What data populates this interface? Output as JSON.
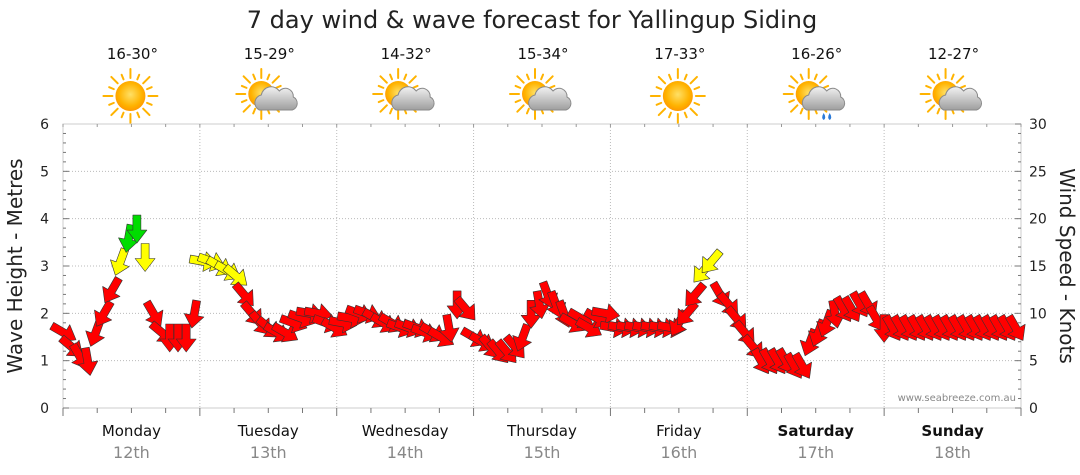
{
  "chart_data": {
    "type": "line",
    "title": "7 day wind & wave forecast for Yallingup Siding",
    "ylabel_left": "Wave Height - Metres",
    "ylabel_right": "Wind Speed - Knots",
    "ylim_left": [
      0,
      6
    ],
    "ylim_right": [
      0,
      30
    ],
    "yticks_left": [
      "0",
      "1",
      "2",
      "3",
      "4",
      "5",
      "6"
    ],
    "yticks_right": [
      "0",
      "5",
      "10",
      "15",
      "20",
      "25",
      "30"
    ],
    "days": [
      {
        "name": "Monday",
        "date": "12th",
        "temp": "16-30°",
        "weather": "sunny",
        "weekend": false
      },
      {
        "name": "Tuesday",
        "date": "13th",
        "temp": "15-29°",
        "weather": "partly-cloudy",
        "weekend": false
      },
      {
        "name": "Wednesday",
        "date": "14th",
        "temp": "14-32°",
        "weather": "partly-cloudy",
        "weekend": false
      },
      {
        "name": "Thursday",
        "date": "15th",
        "temp": "15-34°",
        "weather": "partly-cloudy",
        "weekend": false
      },
      {
        "name": "Friday",
        "date": "16th",
        "temp": "17-33°",
        "weather": "sunny",
        "weekend": false
      },
      {
        "name": "Saturday",
        "date": "17th",
        "temp": "16-26°",
        "weather": "showers",
        "weekend": true
      },
      {
        "name": "Sunday",
        "date": "18th",
        "temp": "12-27°",
        "weather": "partly-cloudy",
        "weekend": true
      }
    ],
    "series": [
      {
        "name": "Wind Speed (knots)",
        "x_days": [
          0.0,
          0.06,
          0.12,
          0.18,
          0.24,
          0.3,
          0.36,
          0.42,
          0.48,
          0.54,
          0.6,
          0.66,
          0.72,
          0.78,
          0.84,
          0.9,
          0.96,
          1.02,
          1.08,
          1.14,
          1.2,
          1.26,
          1.32,
          1.38,
          1.44,
          1.5,
          1.56,
          1.62,
          1.68,
          1.74,
          1.8,
          1.86,
          1.92,
          1.98,
          2.04,
          2.1,
          2.16,
          2.22,
          2.28,
          2.34,
          2.4,
          2.46,
          2.52,
          2.58,
          2.64,
          2.7,
          2.76,
          2.82,
          2.88,
          2.94,
          3.0,
          3.06,
          3.12,
          3.18,
          3.24,
          3.3,
          3.36,
          3.42,
          3.48,
          3.54,
          3.6,
          3.66,
          3.72,
          3.78,
          3.84,
          3.9,
          3.96,
          4.02,
          4.08,
          4.14,
          4.2,
          4.26,
          4.32,
          4.38,
          4.44,
          4.5,
          4.56,
          4.62,
          4.68,
          4.74,
          4.8,
          4.86,
          4.92,
          4.98,
          5.04,
          5.1,
          5.16,
          5.22,
          5.28,
          5.34,
          5.4,
          5.46,
          5.52,
          5.58,
          5.64,
          5.7,
          5.76,
          5.82,
          5.88,
          5.94,
          6.0,
          6.06,
          6.12,
          6.18,
          6.24,
          6.3,
          6.36,
          6.42,
          6.48,
          6.54,
          6.6,
          6.66,
          6.72,
          6.78,
          6.84,
          6.9,
          6.96
        ],
        "values": [
          8,
          6.5,
          5.5,
          5,
          8,
          10,
          12.5,
          15.5,
          18,
          19,
          16,
          10,
          8,
          7.5,
          7.5,
          7.5,
          10,
          15.5,
          15.5,
          15,
          14.5,
          14,
          12,
          10,
          9,
          8.5,
          8,
          8,
          9,
          9.5,
          10,
          10,
          9,
          8.5,
          9,
          9.5,
          10,
          10,
          9.5,
          9,
          9,
          8.5,
          8.5,
          8.5,
          8,
          8,
          7.5,
          8.5,
          11,
          10.5,
          7.5,
          7,
          6.5,
          6,
          6,
          6.5,
          7.5,
          10,
          11,
          12,
          11,
          10,
          9,
          9.5,
          8.5,
          9.5,
          10,
          8.5,
          8.5,
          8.5,
          8.5,
          8.5,
          8.5,
          8.5,
          8.5,
          9,
          10,
          12,
          14.5,
          15.5,
          12,
          11,
          9.5,
          8,
          6.5,
          5,
          5,
          5,
          5,
          4.5,
          4.5,
          7,
          8,
          9,
          10,
          10.5,
          10.5,
          11,
          11,
          9.5,
          8.5,
          8.5,
          8.5,
          8.5,
          8.5,
          8.5,
          8.5,
          8.5,
          8.5,
          8.5,
          8.5,
          8.5,
          8.5,
          8.5,
          8.5,
          8.5,
          8.5
        ],
        "directions_deg": [
          300,
          310,
          330,
          350,
          20,
          30,
          30,
          20,
          10,
          0,
          0,
          330,
          310,
          0,
          0,
          0,
          10,
          280,
          290,
          300,
          300,
          310,
          320,
          320,
          320,
          310,
          300,
          300,
          290,
          290,
          280,
          280,
          290,
          300,
          280,
          280,
          290,
          290,
          300,
          300,
          300,
          290,
          290,
          290,
          290,
          300,
          300,
          350,
          0,
          320,
          300,
          300,
          320,
          320,
          320,
          320,
          20,
          0,
          350,
          340,
          340,
          340,
          300,
          300,
          300,
          300,
          280,
          280,
          280,
          280,
          280,
          280,
          280,
          280,
          280,
          30,
          40,
          40,
          40,
          40,
          330,
          320,
          320,
          320,
          320,
          330,
          330,
          330,
          330,
          330,
          330,
          20,
          20,
          20,
          350,
          330,
          330,
          330,
          330,
          330,
          0,
          330,
          330,
          330,
          330,
          330,
          330,
          330,
          330,
          330,
          330,
          330,
          330,
          330,
          330,
          330,
          330
        ],
        "colors_by_speed": {
          "light": "#ff0000",
          "moderate": "#ffff00",
          "strong": "#00dd00"
        }
      }
    ],
    "credit": "www.seabreeze.com.au"
  }
}
